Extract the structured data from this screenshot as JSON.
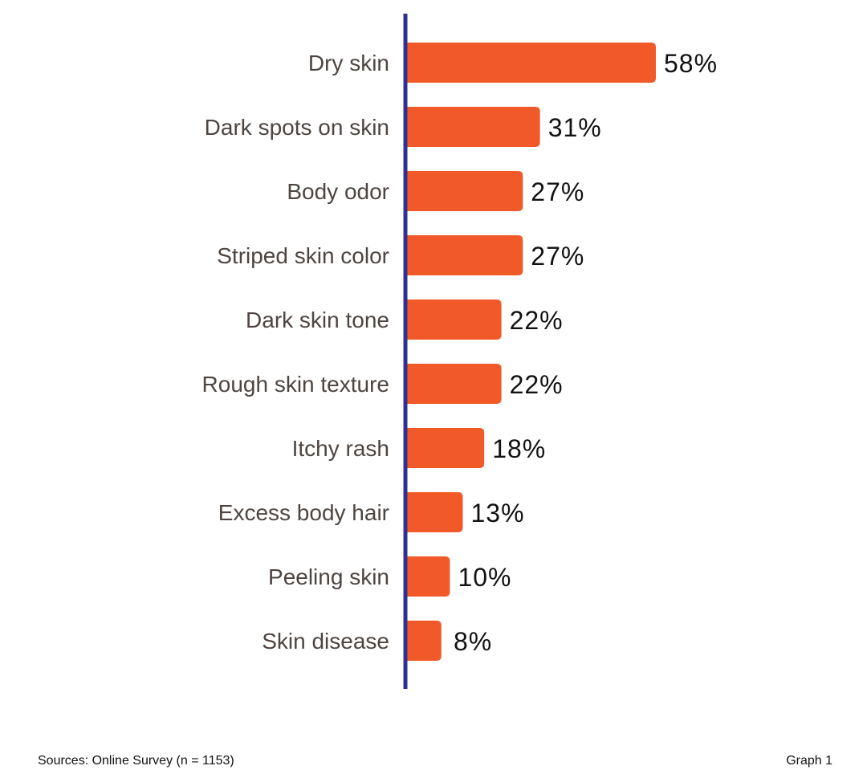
{
  "chart_data": {
    "type": "bar",
    "orientation": "horizontal",
    "categories": [
      "Dry skin",
      "Dark spots on skin",
      "Body odor",
      "Striped skin color",
      "Dark skin tone",
      "Rough skin texture",
      "Itchy rash",
      "Excess body hair",
      "Peeling skin",
      "Skin disease"
    ],
    "values": [
      58,
      31,
      27,
      27,
      22,
      22,
      18,
      13,
      10,
      8
    ],
    "value_labels": [
      "58%",
      "31%",
      "27%",
      "27%",
      "22%",
      "22%",
      "18%",
      "13%",
      "10%",
      "8%"
    ],
    "xlim": [
      0,
      60
    ],
    "grid": false,
    "legend": "none",
    "colors": {
      "bar": "#f15a28",
      "axis": "#2e3192",
      "category_text": "#4e4541",
      "value_text": "#111111"
    }
  },
  "footer": {
    "source": "Sources: Online Survey (n = 1153)",
    "graph": "Graph 1"
  }
}
